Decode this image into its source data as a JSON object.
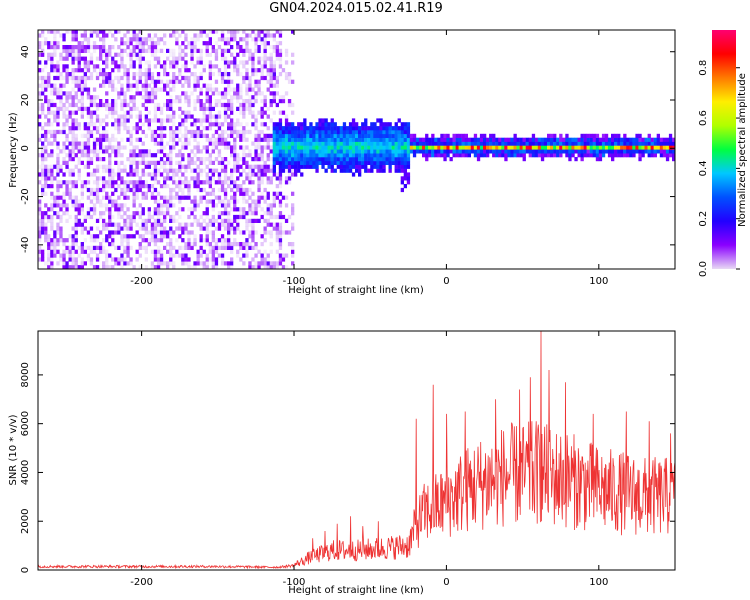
{
  "title": "GN04.2024.015.02.41.R19",
  "chart_data": [
    {
      "type": "heatmap",
      "name": "spectrogram",
      "xlabel": "Height of straight line (km)",
      "ylabel": "Frequency (Hz)",
      "xlim": [
        -268,
        150
      ],
      "ylim": [
        -50,
        49
      ],
      "xticks": [
        -200,
        -100,
        0,
        100
      ],
      "yticks": [
        -40,
        -20,
        0,
        20,
        40
      ],
      "colorbar": {
        "label": "Normalized spectral amplitude",
        "range": [
          0,
          0.95
        ],
        "ticks": [
          0.0,
          0.2,
          0.4,
          0.6,
          0.8
        ],
        "colormap": [
          "#e8d8f4",
          "#8a00ff",
          "#2200ff",
          "#0050ff",
          "#00c8ff",
          "#00ff40",
          "#b0ff00",
          "#ffee00",
          "#ff7a00",
          "#ff0000",
          "#ff0070"
        ]
      },
      "regions": [
        {
          "x_range": [
            -268,
            -100
          ],
          "freq_range": [
            -50,
            49
          ],
          "amplitude": "0.0-0.15",
          "description": "noise"
        },
        {
          "x_range": [
            -115,
            -25
          ],
          "freq_center": 0,
          "freq_halfwidth": 10,
          "amplitude": "0.1-0.4"
        },
        {
          "x_range": [
            -25,
            150
          ],
          "freq_center": 0,
          "freq_halfwidth": 3,
          "amplitude": "0.3-0.9"
        }
      ]
    },
    {
      "type": "line",
      "name": "snr",
      "xlabel": "Height of straight line (km)",
      "ylabel": "SNR (10 * v/v)",
      "xlim": [
        -268,
        150
      ],
      "ylim": [
        0,
        9800
      ],
      "xticks": [
        -200,
        -100,
        0,
        100
      ],
      "yticks": [
        0,
        2000,
        4000,
        6000,
        8000
      ],
      "color": "#ee3333",
      "envelope": {
        "x": [
          -268,
          -200,
          -150,
          -110,
          -100,
          -90,
          -75,
          -60,
          -40,
          -25,
          -20,
          -15,
          -10,
          0,
          10,
          20,
          30,
          40,
          50,
          60,
          70,
          80,
          90,
          100,
          110,
          120,
          130,
          140,
          150
        ],
        "y_mean": [
          150,
          150,
          150,
          120,
          200,
          500,
          800,
          800,
          900,
          1000,
          1800,
          2300,
          2500,
          2800,
          3200,
          3500,
          3700,
          3900,
          3900,
          4000,
          3800,
          3700,
          3500,
          3300,
          3200,
          3100,
          3000,
          3000,
          3000
        ]
      },
      "peaks": [
        {
          "x": -88,
          "y": 1300
        },
        {
          "x": -80,
          "y": 1600
        },
        {
          "x": -72,
          "y": 1900
        },
        {
          "x": -63,
          "y": 2200
        },
        {
          "x": -55,
          "y": 1800
        },
        {
          "x": -45,
          "y": 2000
        },
        {
          "x": -20,
          "y": 6200
        },
        {
          "x": -9,
          "y": 7600
        },
        {
          "x": 0,
          "y": 6400
        },
        {
          "x": 12,
          "y": 6500
        },
        {
          "x": 32,
          "y": 7000
        },
        {
          "x": 48,
          "y": 7400
        },
        {
          "x": 55,
          "y": 7900
        },
        {
          "x": 62,
          "y": 9800
        },
        {
          "x": 67,
          "y": 8200
        },
        {
          "x": 78,
          "y": 7700
        },
        {
          "x": 96,
          "y": 6400
        },
        {
          "x": 118,
          "y": 6500
        },
        {
          "x": 133,
          "y": 6100
        },
        {
          "x": 147,
          "y": 5600
        }
      ]
    }
  ]
}
